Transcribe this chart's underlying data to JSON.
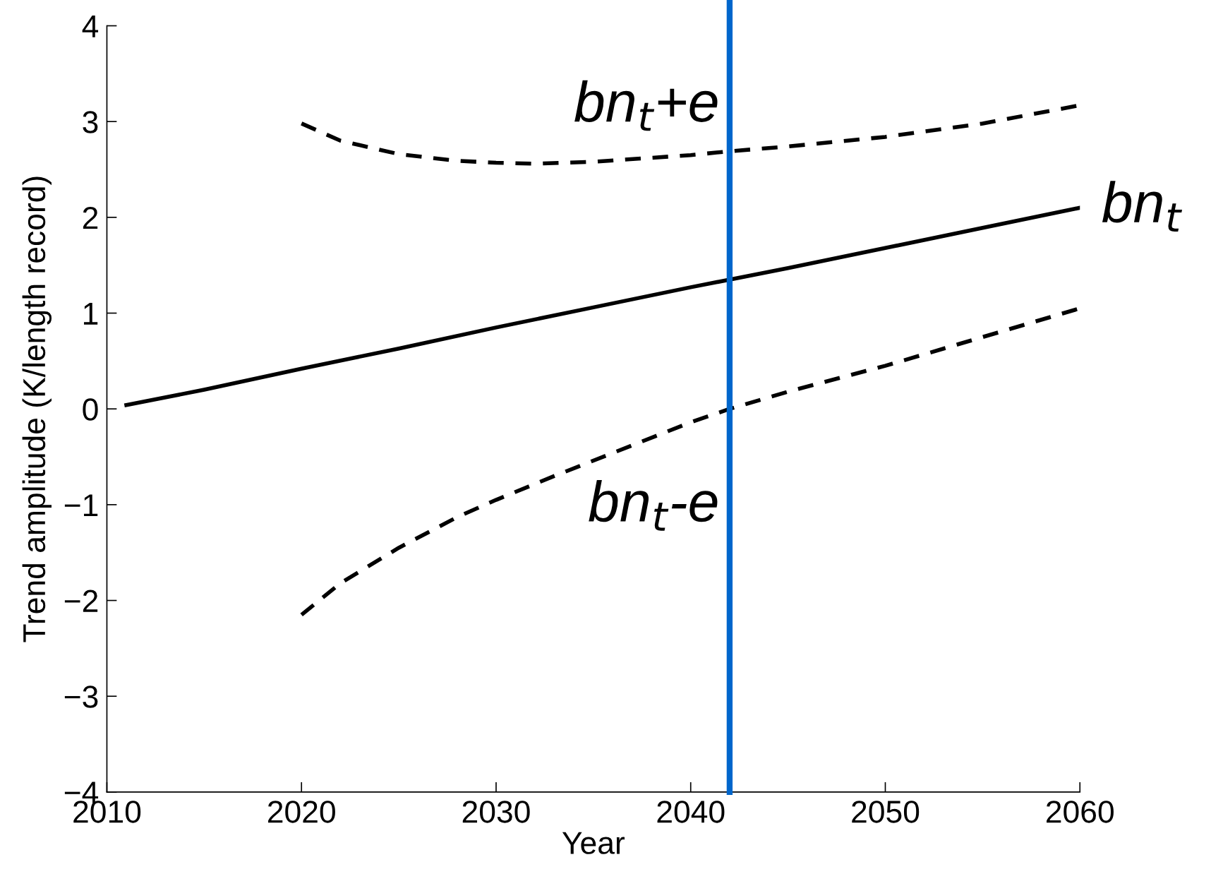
{
  "chart_data": {
    "type": "line",
    "xlabel": "Year",
    "ylabel": "Trend amplitude (K/length record)",
    "xlim": [
      2010,
      2060
    ],
    "xticks": [
      2010,
      2020,
      2030,
      2040,
      2050,
      2060
    ],
    "ylim": [
      -4,
      4
    ],
    "yticks": [
      -4,
      -3,
      -2,
      -1,
      0,
      1,
      2,
      3,
      4
    ],
    "grid": false,
    "legend": false,
    "series": [
      {
        "name": "bn$_{t}$+e",
        "color": "#000000",
        "line_style": "dashed",
        "x": [
          2020,
          2022,
          2025,
          2028,
          2030,
          2032,
          2035,
          2040,
          2042,
          2045,
          2050,
          2055,
          2060
        ],
        "values": [
          2.98,
          2.8,
          2.66,
          2.59,
          2.57,
          2.56,
          2.58,
          2.65,
          2.69,
          2.74,
          2.84,
          2.98,
          3.17
        ]
      },
      {
        "name": "bn$_{t}$",
        "color": "#000000",
        "line_style": "solid",
        "x": [
          2011,
          2015,
          2020,
          2025,
          2030,
          2035,
          2040,
          2045,
          2050,
          2055,
          2060
        ],
        "values": [
          0.04,
          0.2,
          0.42,
          0.63,
          0.85,
          1.06,
          1.27,
          1.47,
          1.68,
          1.89,
          2.1
        ]
      },
      {
        "name": "bn$_{t}$-e",
        "color": "#000000",
        "line_style": "dashed",
        "x": [
          2020,
          2022,
          2025,
          2028,
          2030,
          2033,
          2036,
          2040,
          2042,
          2045,
          2050,
          2055,
          2060
        ],
        "values": [
          -2.15,
          -1.82,
          -1.45,
          -1.13,
          -0.95,
          -0.7,
          -0.46,
          -0.14,
          0.0,
          0.18,
          0.45,
          0.75,
          1.05
        ]
      }
    ],
    "ref_lines": [
      {
        "axis": "x",
        "value": 2042,
        "color": "#0066cc"
      }
    ]
  }
}
